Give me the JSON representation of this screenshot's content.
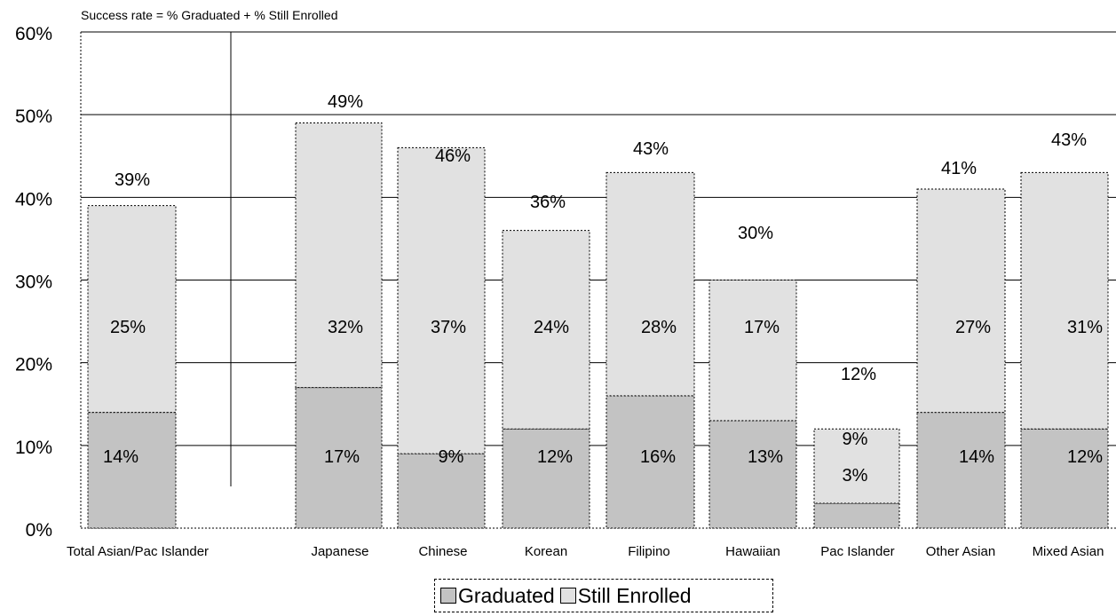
{
  "chart_data": {
    "type": "bar",
    "stacked": true,
    "subtitle": "Success rate = % Graduated + % Still Enrolled",
    "categories": [
      "Total Asian/Pac Islander",
      "Japanese",
      "Chinese",
      "Korean",
      "Filipino",
      "Hawaiian",
      "Pac Islander",
      "Other Asian",
      "Mixed Asian"
    ],
    "series": [
      {
        "name": "Graduated",
        "values": [
          14,
          17,
          9,
          12,
          16,
          13,
          3,
          14,
          12
        ],
        "labels": [
          "14%",
          "17%",
          "9%",
          "12%",
          "16%",
          "13%",
          "3%",
          "14%",
          "12%"
        ],
        "color": "#c3c3c3"
      },
      {
        "name": "Still Enrolled",
        "values": [
          25,
          32,
          37,
          24,
          28,
          17,
          9,
          27,
          31
        ],
        "labels": [
          "25%",
          "32%",
          "37%",
          "24%",
          "28%",
          "17%",
          "9%",
          "27%",
          "31%"
        ],
        "color": "#e1e1e1"
      }
    ],
    "totals": [
      39,
      49,
      46,
      36,
      43,
      30,
      12,
      41,
      43
    ],
    "total_labels": [
      "39%",
      "49%",
      "46%",
      "36%",
      "43%",
      "30%",
      "12%",
      "41%",
      "43%"
    ],
    "y_ticks": [
      "0%",
      "10%",
      "20%",
      "30%",
      "40%",
      "50%",
      "60%"
    ],
    "ylim": [
      0,
      60
    ],
    "grid": true,
    "legend_position": "bottom"
  }
}
